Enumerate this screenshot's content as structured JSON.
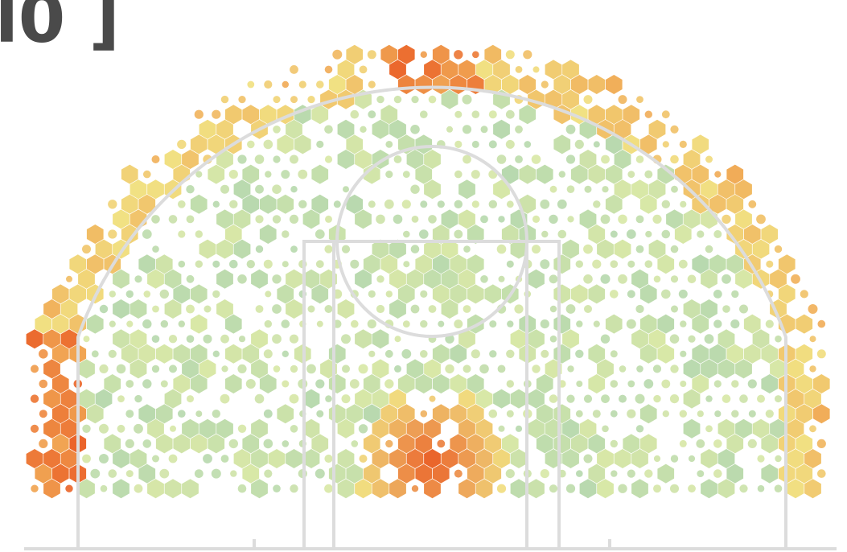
{
  "title_fragment": "l0 ]"
}
